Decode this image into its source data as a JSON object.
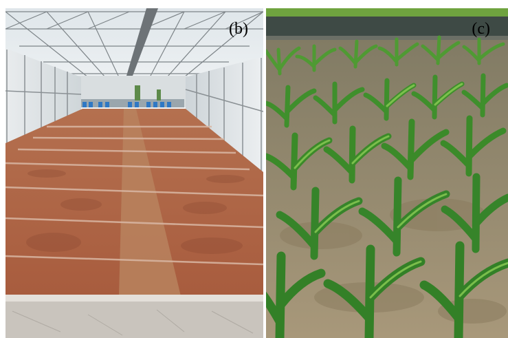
{
  "figure": {
    "panels": [
      {
        "id": "b",
        "label": "(b)"
      },
      {
        "id": "c",
        "label": "(c)"
      }
    ]
  },
  "colors": {
    "figure_background": "#ffffff",
    "soil": "#b5684a",
    "soil_dark": "#8c4a33",
    "greenhouse_frame": "#8a8f92",
    "greenhouse_film": "#e6eaec",
    "maize_leaf": "#3f8f2c",
    "maize_leaf_light": "#7cc44a",
    "field_soil": "#9a8a6a"
  },
  "icons": {
    "panel_b_scene": "greenhouse-soil-plots-photo",
    "panel_c_scene": "maize-seedlings-field-photo"
  }
}
